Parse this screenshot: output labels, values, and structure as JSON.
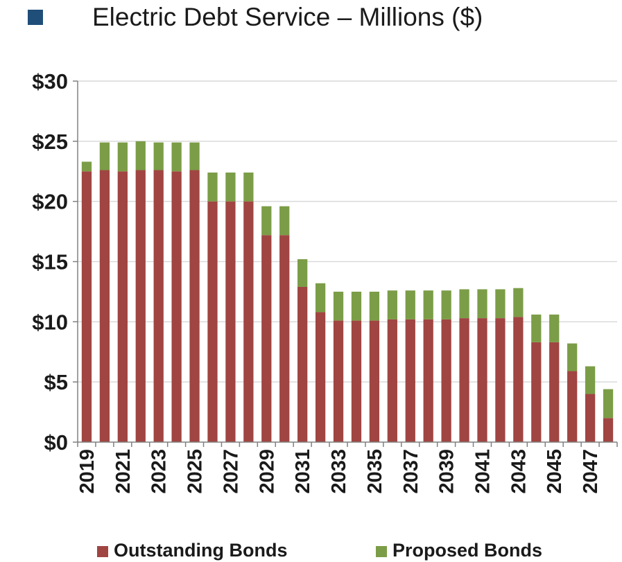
{
  "title": {
    "text": "Electric Debt Service – Millions ($)",
    "bullet_color": "#1F4E79"
  },
  "colors": {
    "outstanding": "#A04542",
    "proposed": "#7B9D47",
    "gridline": "#D9D9D9",
    "axis": "#808080",
    "text": "#1a1a1a"
  },
  "legend": {
    "outstanding_label": "Outstanding Bonds",
    "proposed_label": "Proposed Bonds",
    "placement": "bottom"
  },
  "chart_data": {
    "type": "bar",
    "stacked": true,
    "title": "Electric Debt Service – Millions ($)",
    "categories": [
      "2019",
      "2020",
      "2021",
      "2022",
      "2023",
      "2024",
      "2025",
      "2026",
      "2027",
      "2028",
      "2029",
      "2030",
      "2031",
      "2032",
      "2033",
      "2034",
      "2035",
      "2036",
      "2037",
      "2038",
      "2039",
      "2040",
      "2041",
      "2042",
      "2043",
      "2044",
      "2045",
      "2046",
      "2047",
      "2048"
    ],
    "x_tick_labels": [
      "2019",
      "2021",
      "2023",
      "2025",
      "2027",
      "2029",
      "2031",
      "2033",
      "2035",
      "2037",
      "2039",
      "2041",
      "2043",
      "2045",
      "2047"
    ],
    "series": [
      {
        "name": "Outstanding Bonds",
        "color": "#A04542",
        "values": [
          22.5,
          22.6,
          22.5,
          22.6,
          22.6,
          22.5,
          22.6,
          20.0,
          20.0,
          20.0,
          17.2,
          17.2,
          12.9,
          10.8,
          10.1,
          10.1,
          10.1,
          10.2,
          10.2,
          10.2,
          10.2,
          10.3,
          10.3,
          10.3,
          10.4,
          8.3,
          8.3,
          5.9,
          4.0,
          2.0
        ]
      },
      {
        "name": "Proposed Bonds",
        "color": "#7B9D47",
        "values": [
          0.8,
          2.3,
          2.4,
          2.4,
          2.3,
          2.4,
          2.3,
          2.4,
          2.4,
          2.4,
          2.4,
          2.4,
          2.3,
          2.4,
          2.4,
          2.4,
          2.4,
          2.4,
          2.4,
          2.4,
          2.4,
          2.4,
          2.4,
          2.4,
          2.4,
          2.3,
          2.3,
          2.3,
          2.3,
          2.4
        ]
      }
    ],
    "ylim": [
      0,
      30
    ],
    "y_ticks": [
      0,
      5,
      10,
      15,
      20,
      25,
      30
    ],
    "y_tick_labels": [
      "$0",
      "$5",
      "$10",
      "$15",
      "$20",
      "$25",
      "$30"
    ],
    "xlabel": "",
    "ylabel": "",
    "grid": true,
    "legend_position": "bottom"
  }
}
